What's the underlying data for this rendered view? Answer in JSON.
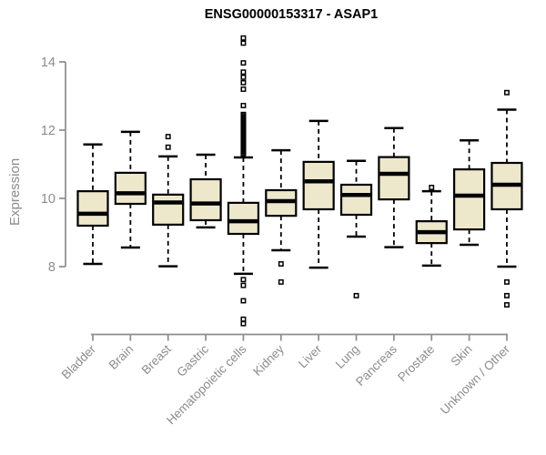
{
  "header": {
    "title": "ENSG00000153317 - ASAP1"
  },
  "chart_data": {
    "type": "boxplot",
    "title": "ENSG00000153317 - ASAP1",
    "xlabel": "",
    "ylabel": "Expression",
    "ylim": [
      6.2,
      14.9
    ],
    "yticks": [
      8,
      10,
      12,
      14
    ],
    "grid": false,
    "legend": "none",
    "marker": "open-square",
    "colors": {
      "box_fill": "#EDE7CC",
      "box_stroke": "#000000",
      "median": "#000000",
      "whisker": "#000000",
      "outlier": "#000000",
      "axis": "#8C8C8C",
      "tick_label": "#8C8C8C",
      "title": "#000000",
      "background": "#FFFFFF"
    },
    "categories": [
      "Bladder",
      "Brain",
      "Breast",
      "Gastric",
      "Hematopoietic cells",
      "Kidney",
      "Liver",
      "Lung",
      "Pancreas",
      "Prostate",
      "Skin",
      "Unknown / Other"
    ],
    "boxes": [
      {
        "category": "Bladder",
        "whisker_low": 8.08,
        "q1": 9.2,
        "median": 9.55,
        "q3": 10.21,
        "whisker_high": 11.58,
        "outliers": []
      },
      {
        "category": "Brain",
        "whisker_low": 8.56,
        "q1": 9.84,
        "median": 10.15,
        "q3": 10.75,
        "whisker_high": 11.95,
        "outliers": []
      },
      {
        "category": "Breast",
        "whisker_low": 8.01,
        "q1": 9.23,
        "median": 9.88,
        "q3": 10.11,
        "whisker_high": 11.23,
        "outliers": [
          11.5,
          11.81
        ]
      },
      {
        "category": "Gastric",
        "whisker_low": 9.15,
        "q1": 9.36,
        "median": 9.85,
        "q3": 10.56,
        "whisker_high": 11.28,
        "outliers": []
      },
      {
        "category": "Hematopoietic cells",
        "whisker_low": 7.79,
        "q1": 8.96,
        "median": 9.33,
        "q3": 9.87,
        "whisker_high": 11.2,
        "outliers": [
          11.3,
          11.34,
          11.38,
          11.42,
          11.46,
          11.5,
          11.54,
          11.58,
          11.62,
          11.66,
          11.7,
          11.74,
          11.78,
          11.82,
          11.86,
          11.9,
          11.94,
          11.98,
          12.02,
          12.06,
          12.1,
          12.14,
          12.18,
          12.22,
          12.26,
          12.3,
          12.34,
          12.38,
          12.42,
          12.46,
          12.72,
          13.2,
          13.39,
          13.55,
          13.7,
          13.97,
          14.55,
          14.7,
          7.62,
          7.45,
          7.0,
          6.46,
          6.33
        ]
      },
      {
        "category": "Kidney",
        "whisker_low": 8.48,
        "q1": 9.49,
        "median": 9.92,
        "q3": 10.24,
        "whisker_high": 11.41,
        "outliers": [
          8.08,
          7.55
        ]
      },
      {
        "category": "Liver",
        "whisker_low": 7.97,
        "q1": 9.68,
        "median": 10.5,
        "q3": 11.07,
        "whisker_high": 12.27,
        "outliers": []
      },
      {
        "category": "Lung",
        "whisker_low": 8.88,
        "q1": 9.52,
        "median": 10.1,
        "q3": 10.4,
        "whisker_high": 11.1,
        "outliers": [
          7.15
        ]
      },
      {
        "category": "Pancreas",
        "whisker_low": 8.57,
        "q1": 9.97,
        "median": 10.72,
        "q3": 11.21,
        "whisker_high": 12.06,
        "outliers": []
      },
      {
        "category": "Prostate",
        "whisker_low": 8.03,
        "q1": 8.69,
        "median": 9.01,
        "q3": 9.33,
        "whisker_high": 10.21,
        "outliers": [
          10.32
        ]
      },
      {
        "category": "Skin",
        "whisker_low": 8.64,
        "q1": 9.09,
        "median": 10.08,
        "q3": 10.85,
        "whisker_high": 11.7,
        "outliers": []
      },
      {
        "category": "Unknown / Other",
        "whisker_low": 8.0,
        "q1": 9.68,
        "median": 10.4,
        "q3": 11.04,
        "whisker_high": 12.6,
        "outliers": [
          13.1,
          7.55,
          7.15,
          6.88
        ]
      }
    ]
  }
}
